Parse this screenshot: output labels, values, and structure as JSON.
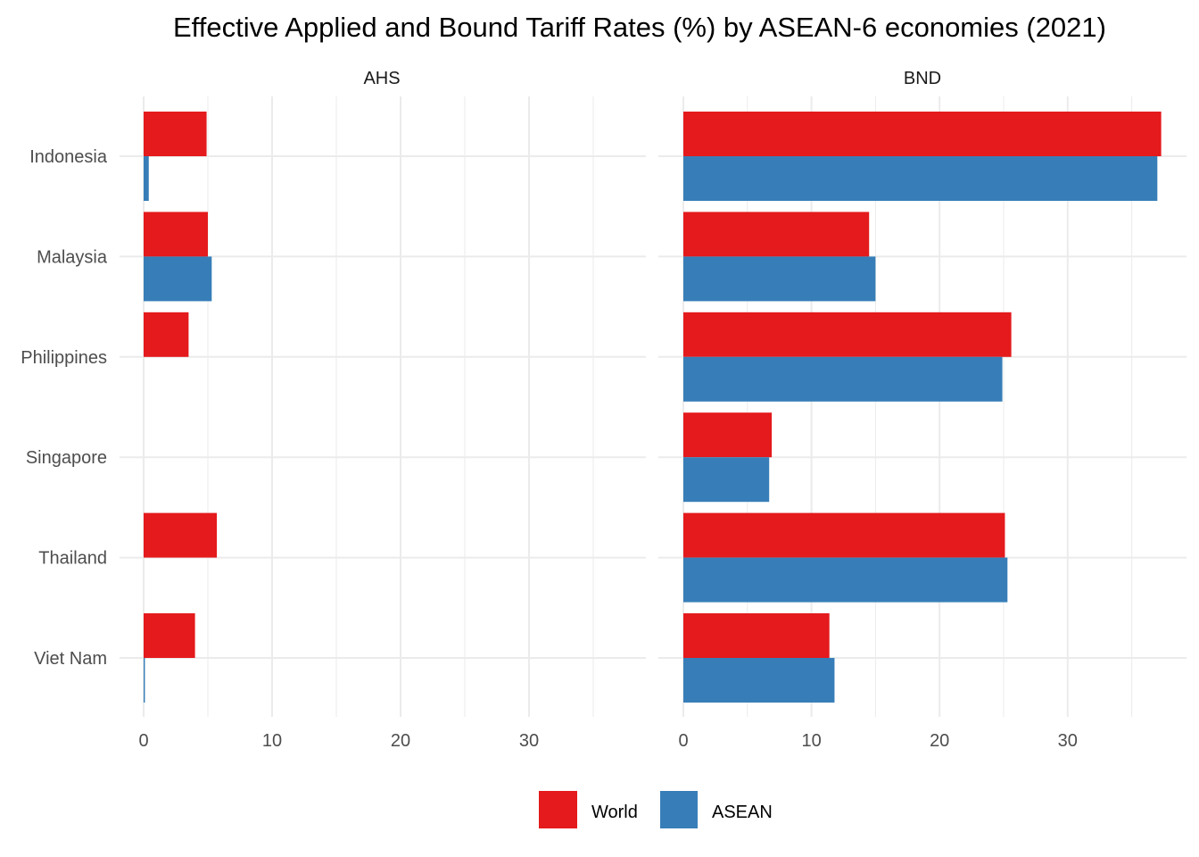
{
  "chart_data": {
    "type": "bar",
    "orientation": "horizontal",
    "title": "Effective Applied and Bound Tariff Rates (%) by ASEAN-6 economies (2021)",
    "xlabel": "",
    "ylabel": "",
    "grid": true,
    "legend_position": "bottom",
    "categories": [
      "Indonesia",
      "Malaysia",
      "Philippines",
      "Singapore",
      "Thailand",
      "Viet Nam"
    ],
    "x_ticks": [
      "0",
      "10",
      "20",
      "30"
    ],
    "x_tick_values": [
      0,
      10,
      20,
      30
    ],
    "xlim": [
      -1.9,
      39.1
    ],
    "series_colors": {
      "World": "#E41A1C",
      "ASEAN": "#377EB8"
    },
    "legend": [
      {
        "name": "World",
        "color": "#E41A1C"
      },
      {
        "name": "ASEAN",
        "color": "#377EB8"
      }
    ],
    "panels": [
      {
        "label": "AHS",
        "series": [
          {
            "name": "World",
            "values": [
              4.9,
              5.0,
              3.5,
              0.0,
              5.7,
              4.0
            ]
          },
          {
            "name": "ASEAN",
            "values": [
              0.4,
              5.3,
              0.0,
              0.0,
              0.0,
              0.1
            ]
          }
        ]
      },
      {
        "label": "BND",
        "series": [
          {
            "name": "World",
            "values": [
              37.3,
              14.5,
              25.6,
              6.9,
              25.1,
              11.4
            ]
          },
          {
            "name": "ASEAN",
            "values": [
              37.0,
              15.0,
              24.9,
              6.7,
              25.3,
              11.8
            ]
          }
        ]
      }
    ]
  }
}
